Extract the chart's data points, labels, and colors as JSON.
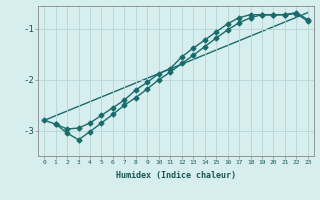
{
  "xlabel": "Humidex (Indice chaleur)",
  "x_ticks": [
    0,
    1,
    2,
    3,
    4,
    5,
    6,
    7,
    8,
    9,
    10,
    11,
    12,
    13,
    14,
    15,
    16,
    17,
    18,
    19,
    20,
    21,
    22,
    23
  ],
  "xlim": [
    -0.5,
    23.5
  ],
  "ylim": [
    -3.5,
    -0.55
  ],
  "yticks": [
    -3,
    -2,
    -1
  ],
  "ytick_labels": [
    "-3",
    "-2",
    "-1"
  ],
  "background_color": "#d7eeee",
  "grid_color": "#b8d4d4",
  "line_color": "#1a6b6b",
  "line1_x": [
    0,
    1,
    2,
    3,
    4,
    5,
    6,
    7,
    8,
    9,
    10,
    11,
    12,
    13,
    14,
    15,
    16,
    17,
    18,
    19,
    20,
    21,
    22,
    23
  ],
  "line1_y": [
    -2.8,
    -2.87,
    -2.97,
    -2.95,
    -2.85,
    -2.7,
    -2.55,
    -2.4,
    -2.2,
    -2.05,
    -1.88,
    -1.78,
    -1.55,
    -1.38,
    -1.22,
    -1.06,
    -0.9,
    -0.78,
    -0.72,
    -0.72,
    -0.73,
    -0.72,
    -0.68,
    -0.82
  ],
  "line2_x": [
    1,
    2,
    3,
    4,
    5,
    6,
    7,
    8,
    9,
    10,
    11,
    12,
    13,
    14,
    15,
    16,
    17,
    18,
    19,
    20,
    21,
    22,
    23
  ],
  "line2_y": [
    -2.87,
    -3.05,
    -3.18,
    -3.02,
    -2.85,
    -2.68,
    -2.5,
    -2.35,
    -2.18,
    -2.0,
    -1.85,
    -1.68,
    -1.52,
    -1.35,
    -1.18,
    -1.02,
    -0.88,
    -0.78,
    -0.72,
    -0.72,
    -0.72,
    -0.7,
    -0.85
  ],
  "line3_x": [
    0,
    23
  ],
  "line3_y": [
    -2.8,
    -0.68
  ],
  "marker": "D",
  "marker_size": 2.5,
  "linewidth": 1.0
}
